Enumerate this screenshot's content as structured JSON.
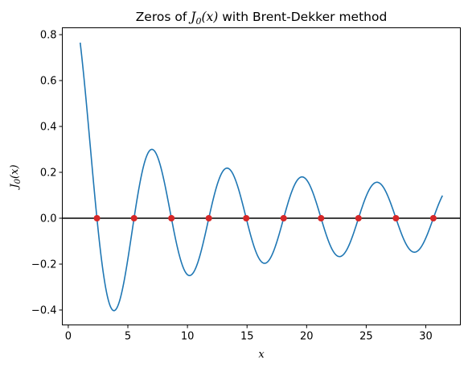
{
  "chart_data": {
    "type": "line",
    "title": {
      "pre": "Zeros of ",
      "math_main": "J",
      "math_sub": "0",
      "math_rest": "(x)",
      "post": " with Brent-Dekker method"
    },
    "xlabel": "x",
    "ylabel": {
      "main": "J",
      "sub": "0",
      "rest": "(x)"
    },
    "xlim": [
      -0.5,
      32.9
    ],
    "ylim": [
      -0.465,
      0.83
    ],
    "xticks": [
      0,
      5,
      10,
      15,
      20,
      25,
      30
    ],
    "yticks": [
      -0.4,
      -0.2,
      0.0,
      0.2,
      0.4,
      0.6,
      0.8
    ],
    "ytick_labels": [
      "−0.4",
      "−0.2",
      "0.0",
      "0.2",
      "0.4",
      "0.6",
      "0.8"
    ],
    "grid": false,
    "series": [
      {
        "kind": "function",
        "function": "J0",
        "x_range": [
          1.0,
          31.4
        ],
        "color": "#1f77b4"
      },
      {
        "kind": "hline",
        "y": 0.0,
        "color": "#000000"
      },
      {
        "kind": "points",
        "color": "#d62728",
        "x": [
          2.4048,
          5.5201,
          8.6537,
          11.7915,
          14.9309,
          18.0711,
          21.2116,
          24.3525,
          27.4935,
          30.6346
        ],
        "y": [
          0,
          0,
          0,
          0,
          0,
          0,
          0,
          0,
          0,
          0
        ]
      }
    ]
  }
}
